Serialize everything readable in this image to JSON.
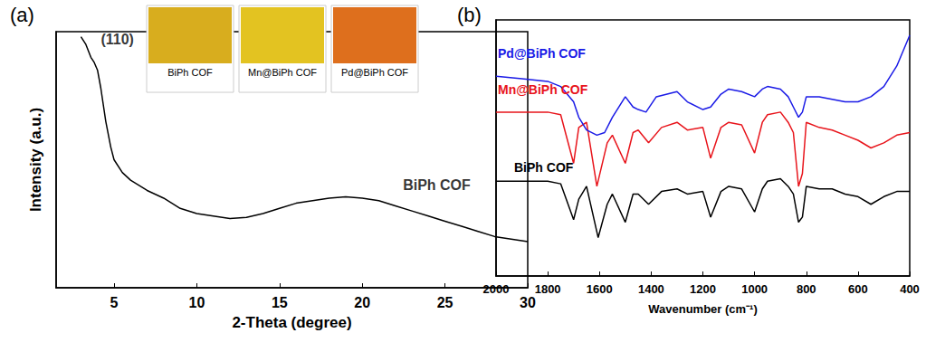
{
  "chart_data": [
    {
      "type": "line",
      "title": "(a)",
      "x_label": "2-Theta (degree)",
      "y_label": "Intensity (a.u.)",
      "xlim": [
        1.5,
        30
      ],
      "xticks": [
        5,
        10,
        15,
        20,
        25,
        30
      ],
      "ylim": [
        0,
        100
      ],
      "tick_labels": "x",
      "grid": false,
      "series": [
        {
          "name": "BiPh COF",
          "color": "#000000",
          "x": [
            3.0,
            3.3,
            3.6,
            3.8,
            4.0,
            4.2,
            4.5,
            4.8,
            5.0,
            5.5,
            6.0,
            7.0,
            8.0,
            9.0,
            10.0,
            11.0,
            12.0,
            13.0,
            14.0,
            15.0,
            16.0,
            17.0,
            18.0,
            19.0,
            20.0,
            21.0,
            22.0,
            23.0,
            24.0,
            25.0,
            26.0,
            27.0,
            28.0,
            29.0,
            30.0
          ],
          "values": [
            98,
            95,
            90,
            88,
            85,
            78,
            65,
            55,
            50,
            45,
            42,
            38,
            35,
            31,
            29,
            28,
            27,
            27.5,
            29,
            31,
            33,
            34,
            35,
            35.5,
            35,
            34,
            32,
            30,
            28,
            26,
            24,
            22,
            20,
            19,
            18
          ]
        }
      ],
      "annotations": [
        {
          "text": "(110)",
          "x": 5.2,
          "y": 97
        },
        {
          "text": "BiPh COF",
          "x": 24.5,
          "y": 40
        }
      ],
      "insets": [
        {
          "label": "BiPh COF",
          "color": "#d8ad1e"
        },
        {
          "label": "Mn@BiPh COF",
          "color": "#e3c321"
        },
        {
          "label": "Pd@BiPh COF",
          "color": "#de6f1d"
        }
      ]
    },
    {
      "type": "line",
      "title": "(b)",
      "x_label": "Wavenumber (cm⁻¹)",
      "xlim": [
        2000,
        400
      ],
      "xticks": [
        2000,
        1800,
        1600,
        1400,
        1200,
        1000,
        800,
        600,
        400
      ],
      "ylim": [
        0,
        100
      ],
      "tick_labels": "x",
      "grid": false,
      "series": [
        {
          "name": "BiPh COF",
          "color": "#000000",
          "x": [
            2000,
            1900,
            1800,
            1750,
            1700,
            1680,
            1650,
            1605,
            1570,
            1550,
            1500,
            1470,
            1450,
            1410,
            1360,
            1300,
            1260,
            1200,
            1170,
            1130,
            1100,
            1050,
            1000,
            970,
            950,
            900,
            870,
            850,
            830,
            815,
            800,
            750,
            700,
            650,
            600,
            550,
            500,
            450,
            400
          ],
          "values": [
            37,
            37,
            37,
            36,
            22,
            30,
            35,
            15,
            28,
            32,
            21,
            32,
            32,
            28,
            33,
            34,
            32,
            33,
            23,
            33,
            35,
            34,
            25,
            34,
            37,
            38,
            35,
            32,
            21,
            23,
            35,
            34,
            34,
            32,
            31,
            28,
            31,
            33,
            33
          ]
        },
        {
          "name": "Mn@BiPh COF",
          "color": "#e8141b",
          "x": [
            2000,
            1900,
            1800,
            1750,
            1700,
            1680,
            1650,
            1610,
            1570,
            1550,
            1500,
            1470,
            1450,
            1410,
            1360,
            1300,
            1260,
            1200,
            1170,
            1130,
            1100,
            1050,
            1000,
            970,
            950,
            900,
            870,
            850,
            830,
            815,
            800,
            750,
            700,
            650,
            600,
            550,
            500,
            450,
            400
          ],
          "values": [
            64,
            64,
            64,
            63,
            44,
            58,
            60,
            35,
            52,
            55,
            44,
            56,
            57,
            52,
            58,
            60,
            57,
            58,
            46,
            58,
            60,
            59,
            48,
            60,
            63,
            64,
            60,
            56,
            35,
            40,
            60,
            58,
            57,
            55,
            53,
            50,
            52,
            55,
            56
          ]
        },
        {
          "name": "Pd@BiPh COF",
          "color": "#1a1ae6",
          "x": [
            2000,
            1900,
            1800,
            1750,
            1700,
            1680,
            1650,
            1610,
            1580,
            1550,
            1500,
            1470,
            1450,
            1420,
            1380,
            1300,
            1260,
            1200,
            1170,
            1130,
            1100,
            1050,
            1000,
            970,
            950,
            900,
            870,
            850,
            830,
            815,
            800,
            750,
            700,
            650,
            600,
            550,
            500,
            450,
            400
          ],
          "values": [
            78,
            77,
            76,
            74,
            68,
            62,
            57,
            55,
            56,
            62,
            70,
            66,
            65,
            64,
            70,
            72,
            68,
            65,
            66,
            71,
            73,
            72,
            70,
            73,
            74,
            73,
            70,
            66,
            62,
            64,
            70,
            70,
            69,
            68,
            68,
            70,
            74,
            82,
            94
          ]
        }
      ]
    }
  ]
}
